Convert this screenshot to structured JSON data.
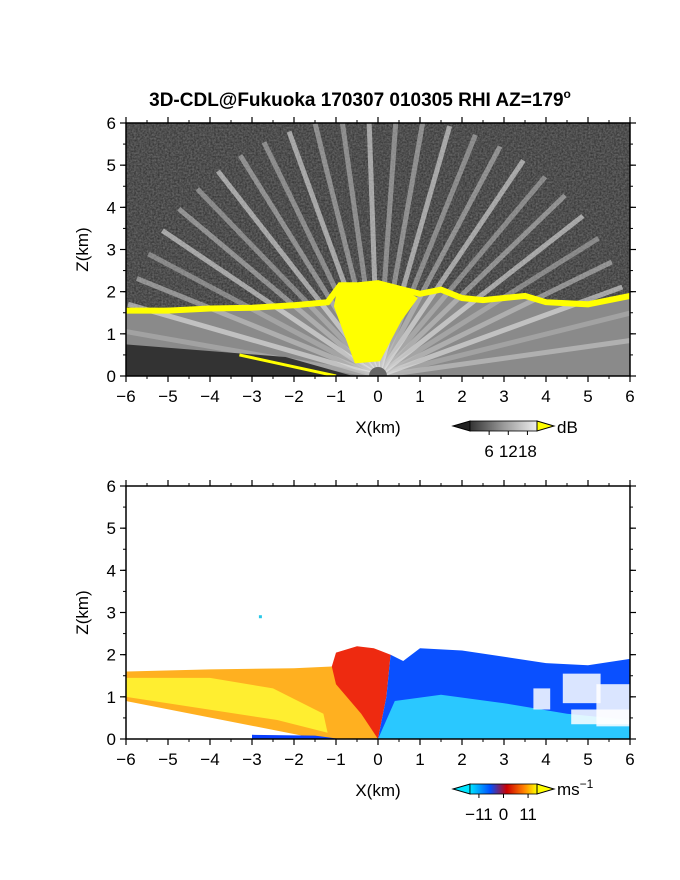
{
  "title": "3D-CDL@Fukuoka 170307 010305 RHI AZ=179",
  "title_sup": "o",
  "chart_data": [
    {
      "type": "heatmap",
      "variable": "backscatter intensity",
      "xlabel": "X(km)",
      "ylabel": "Z(km)",
      "xlim": [
        -6,
        6
      ],
      "ylim": [
        0,
        6
      ],
      "xticks": [
        -6,
        -5,
        -4,
        -3,
        -2,
        -1,
        0,
        1,
        2,
        3,
        4,
        5,
        6
      ],
      "yticks": [
        0,
        1,
        2,
        3,
        4,
        5,
        6
      ],
      "colorbar": {
        "unit": "dB",
        "ticks": [
          6,
          12,
          18
        ],
        "range": [
          0,
          21
        ],
        "colors": [
          "#111111",
          "#666666",
          "#bbbbbb",
          "#ffffff",
          "#ffff00"
        ]
      },
      "cloud_top_km": [
        [
          -6,
          1.55
        ],
        [
          -5,
          1.55
        ],
        [
          -4,
          1.6
        ],
        [
          -3,
          1.62
        ],
        [
          -2,
          1.68
        ],
        [
          -1.2,
          1.75
        ],
        [
          -0.9,
          2.15
        ],
        [
          -0.5,
          2.15
        ],
        [
          0,
          2.2
        ],
        [
          0.6,
          2.05
        ],
        [
          1,
          1.95
        ],
        [
          1.5,
          2.05
        ],
        [
          2,
          1.85
        ],
        [
          2.5,
          1.8
        ],
        [
          3,
          1.85
        ],
        [
          3.5,
          1.9
        ],
        [
          4,
          1.75
        ],
        [
          5,
          1.7
        ],
        [
          6,
          1.9
        ]
      ]
    },
    {
      "type": "heatmap",
      "variable": "radial velocity",
      "xlabel": "X(km)",
      "ylabel": "Z(km)",
      "xlim": [
        -6,
        6
      ],
      "ylim": [
        0,
        6
      ],
      "xticks": [
        -6,
        -5,
        -4,
        -3,
        -2,
        -1,
        0,
        1,
        2,
        3,
        4,
        5,
        6
      ],
      "yticks": [
        0,
        1,
        2,
        3,
        4,
        5,
        6
      ],
      "colorbar": {
        "unit": "ms",
        "unit_sup": "−1",
        "ticks": [
          -11,
          0,
          11
        ],
        "tick_labels": [
          "−11",
          "0",
          "11"
        ],
        "range": [
          -15,
          15
        ],
        "colors": [
          "#00e5ff",
          "#0050ff",
          "#cc0000",
          "#ff7f00",
          "#ffff00"
        ]
      },
      "echo_top_km": [
        [
          -6,
          1.6
        ],
        [
          -4,
          1.65
        ],
        [
          -2,
          1.68
        ],
        [
          -1.1,
          1.72
        ],
        [
          -1,
          2.05
        ],
        [
          -0.5,
          2.2
        ],
        [
          0.3,
          2.15
        ],
        [
          0.6,
          1.85
        ],
        [
          1,
          2.15
        ],
        [
          2,
          2.1
        ],
        [
          3,
          1.95
        ],
        [
          4,
          1.8
        ],
        [
          5,
          1.75
        ],
        [
          6,
          1.9
        ]
      ],
      "isolated_echo": {
        "x": -2.8,
        "z": 2.9
      }
    }
  ]
}
